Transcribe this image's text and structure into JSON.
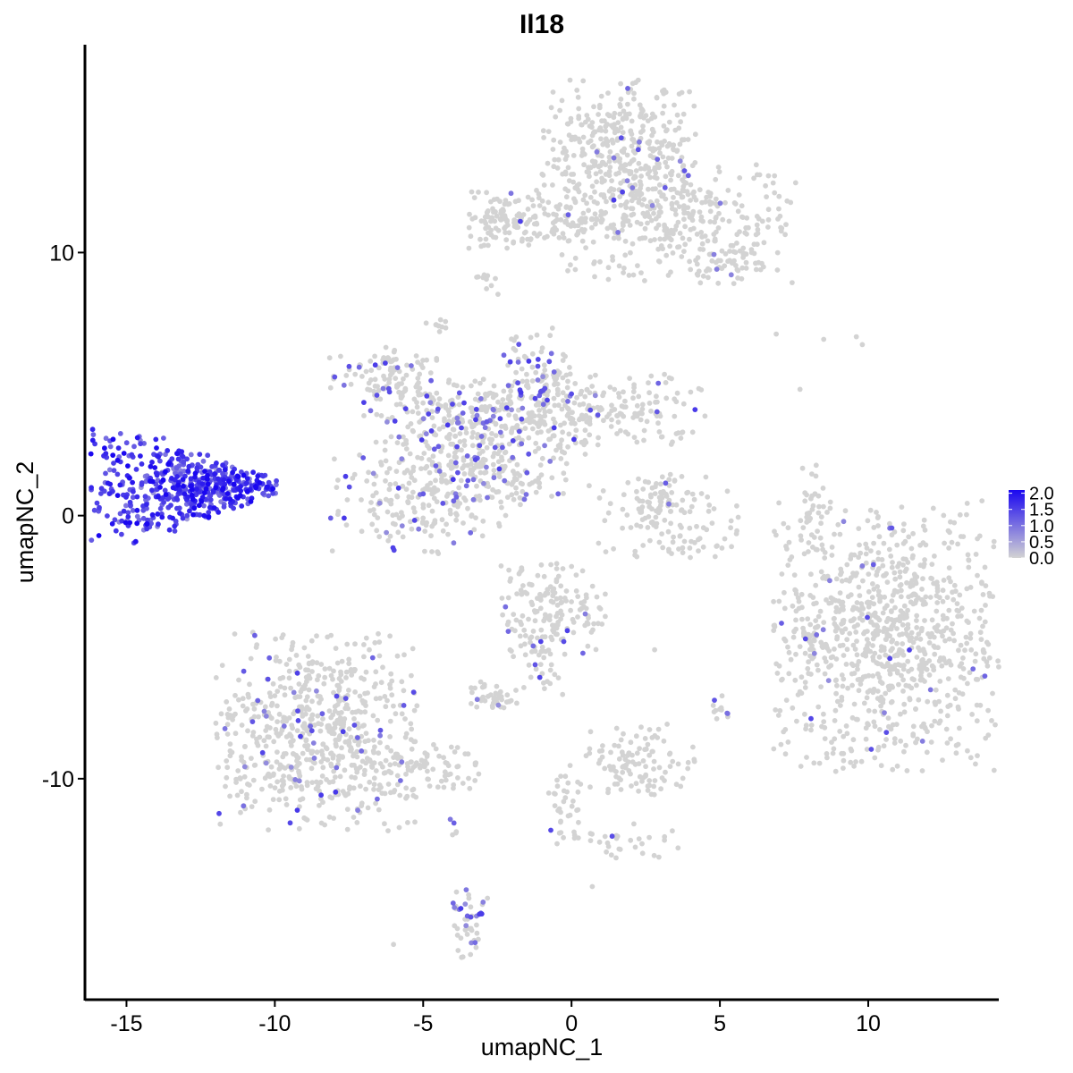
{
  "chart_data": {
    "type": "scatter",
    "title": "Il18",
    "xlabel": "umapNC_1",
    "ylabel": "umapNC_2",
    "xlim": [
      -16.4,
      14.4
    ],
    "ylim": [
      -18.4,
      17.9
    ],
    "x_ticks": [
      -15,
      -10,
      -5,
      0,
      5,
      10
    ],
    "y_ticks": [
      -10,
      0,
      10
    ],
    "grid": false,
    "legend_position": "right",
    "color_scale": {
      "low_color": "#D3D3D3",
      "high_color": "#1A07F0",
      "min": 0.0,
      "max": 2.1,
      "ticks": [
        2.0,
        1.5,
        1.0,
        0.5,
        0.0
      ]
    },
    "clusters": [
      {
        "cx": -13.0,
        "cy": 1.1,
        "rx": 1.6,
        "ry": 1.1,
        "n": 520,
        "expression": 1.55,
        "shape": "arrow"
      },
      {
        "cx": 1.6,
        "cy": 14.0,
        "rx": 1.3,
        "ry": 1.3,
        "n": 380,
        "expression": 0.05
      },
      {
        "cx": 3.6,
        "cy": 11.2,
        "rx": 2.0,
        "ry": 1.2,
        "n": 330,
        "expression": 0.05
      },
      {
        "cx": -2.1,
        "cy": 11.3,
        "rx": 0.9,
        "ry": 0.6,
        "n": 110,
        "expression": 0.05
      },
      {
        "cx": 0.3,
        "cy": 11.0,
        "rx": 1.6,
        "ry": 0.3,
        "n": 60,
        "expression": 0.05
      },
      {
        "cx": 5.4,
        "cy": 9.6,
        "rx": 0.6,
        "ry": 0.4,
        "n": 40,
        "expression": 0.05
      },
      {
        "cx": -2.8,
        "cy": 8.6,
        "rx": 0.2,
        "ry": 0.3,
        "n": 10,
        "expression": 0.05
      },
      {
        "cx": -4.5,
        "cy": 7.3,
        "rx": 0.2,
        "ry": 0.2,
        "n": 10,
        "expression": 0.05
      },
      {
        "cx": -6.3,
        "cy": 5.4,
        "rx": 1.0,
        "ry": 0.5,
        "n": 90,
        "expression": 0.35
      },
      {
        "cx": -4.6,
        "cy": 3.9,
        "rx": 1.2,
        "ry": 0.6,
        "n": 120,
        "expression": 0.35
      },
      {
        "cx": -2.2,
        "cy": 3.0,
        "rx": 1.6,
        "ry": 1.2,
        "n": 230,
        "expression": 0.3
      },
      {
        "cx": -1.1,
        "cy": 5.2,
        "rx": 0.6,
        "ry": 1.0,
        "n": 90,
        "expression": 0.45
      },
      {
        "cx": 0.8,
        "cy": 4.0,
        "rx": 1.9,
        "ry": 0.7,
        "n": 200,
        "expression": 0.1
      },
      {
        "cx": -5.2,
        "cy": 0.7,
        "rx": 1.5,
        "ry": 1.1,
        "n": 200,
        "expression": 0.25
      },
      {
        "cx": -3.5,
        "cy": 1.8,
        "rx": 0.8,
        "ry": 0.9,
        "n": 90,
        "expression": 0.3
      },
      {
        "cx": -1.8,
        "cy": 1.2,
        "rx": 0.6,
        "ry": 0.4,
        "n": 25,
        "expression": 0.2
      },
      {
        "cx": 3.3,
        "cy": -0.1,
        "rx": 1.2,
        "ry": 0.8,
        "n": 130,
        "expression": 0.05
      },
      {
        "cx": 3.2,
        "cy": 0.9,
        "rx": 0.3,
        "ry": 0.4,
        "n": 20,
        "expression": 0.05
      },
      {
        "cx": 8.1,
        "cy": 0.4,
        "rx": 0.2,
        "ry": 0.9,
        "n": 30,
        "expression": 0.05
      },
      {
        "cx": 10.6,
        "cy": -4.6,
        "rx": 1.9,
        "ry": 2.6,
        "n": 900,
        "expression": 0.05
      },
      {
        "cx": 8.1,
        "cy": -4.9,
        "rx": 0.2,
        "ry": 0.4,
        "n": 15,
        "expression": 0.5
      },
      {
        "cx": -0.6,
        "cy": -3.6,
        "rx": 0.9,
        "ry": 0.9,
        "n": 160,
        "expression": 0.05
      },
      {
        "cx": -1.0,
        "cy": -5.5,
        "rx": 0.4,
        "ry": 0.6,
        "n": 30,
        "expression": 0.05
      },
      {
        "cx": -2.6,
        "cy": -6.9,
        "rx": 0.5,
        "ry": 0.3,
        "n": 40,
        "expression": 0.05
      },
      {
        "cx": -8.6,
        "cy": -8.2,
        "rx": 1.7,
        "ry": 1.9,
        "n": 640,
        "expression": 0.12
      },
      {
        "cx": -5.7,
        "cy": -9.7,
        "rx": 1.3,
        "ry": 0.5,
        "n": 100,
        "expression": 0.15
      },
      {
        "cx": -3.4,
        "cy": -15.5,
        "rx": 0.3,
        "ry": 0.8,
        "n": 45,
        "expression": 0.7
      },
      {
        "cx": 2.2,
        "cy": -9.3,
        "rx": 1.0,
        "ry": 0.7,
        "n": 110,
        "expression": 0.05
      },
      {
        "cx": -0.3,
        "cy": -11.0,
        "rx": 0.3,
        "ry": 0.8,
        "n": 30,
        "expression": 0.05
      },
      {
        "cx": 1.7,
        "cy": -12.3,
        "rx": 1.0,
        "ry": 0.4,
        "n": 35,
        "expression": 0.1
      },
      {
        "cx": 5.0,
        "cy": -7.4,
        "rx": 0.15,
        "ry": 0.3,
        "n": 12,
        "expression": 0.6
      },
      {
        "cx": -3.9,
        "cy": -11.8,
        "rx": 0.1,
        "ry": 0.2,
        "n": 5,
        "expression": 0.6
      }
    ],
    "isolated_points": [
      [
        6.9,
        6.9
      ],
      [
        8.5,
        6.7
      ],
      [
        9.6,
        6.8
      ],
      [
        9.8,
        6.5
      ],
      [
        7.7,
        4.8
      ],
      [
        -6.0,
        -16.3
      ],
      [
        0.7,
        -14.1
      ],
      [
        -0.3,
        -6.8
      ],
      [
        2.8,
        -5.1
      ]
    ]
  }
}
